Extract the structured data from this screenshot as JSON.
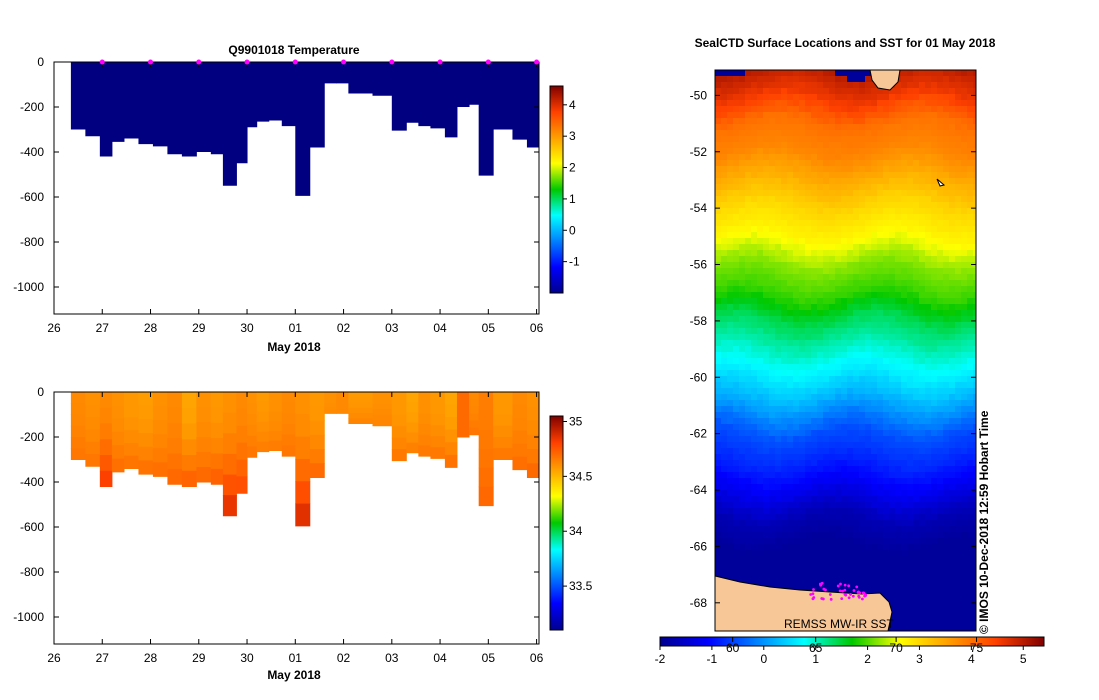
{
  "chart_data": [
    {
      "type": "heatmap",
      "id": "temperature",
      "title": "Q9901018  Temperature",
      "xlabel": "May 2018",
      "ylabel": "",
      "x_ticks": [
        "26",
        "27",
        "28",
        "29",
        "30",
        "01",
        "02",
        "03",
        "04",
        "05",
        "06"
      ],
      "x_tick_days": [
        0,
        1,
        2,
        3,
        4,
        5,
        6,
        7,
        8,
        9,
        10
      ],
      "y_ticks": [
        0,
        -200,
        -400,
        -600,
        -800,
        -1000
      ],
      "ylim": [
        -1120,
        0
      ],
      "xlim_days": [
        0,
        10.05
      ],
      "colorbar": {
        "ticks": [
          -1,
          0,
          1,
          2,
          3,
          4
        ],
        "range": [
          -2,
          4.6
        ]
      },
      "profile_start_days": [
        0.35,
        0.65,
        0.95,
        1.2,
        1.45,
        1.75,
        2.05,
        2.35,
        2.65,
        2.95,
        3.25,
        3.5,
        3.78,
        4.0,
        4.2,
        4.45,
        4.72,
        5.0,
        5.3,
        5.6,
        5.85,
        6.1,
        6.6,
        7.0,
        7.3,
        7.55,
        7.8,
        8.1,
        8.35,
        8.6,
        8.8,
        9.1,
        9.5,
        9.8,
        10.05
      ],
      "profile_max_depth": [
        -300,
        -330,
        -420,
        -355,
        -340,
        -365,
        -375,
        -410,
        -420,
        -400,
        -410,
        -550,
        -450,
        -290,
        -265,
        -260,
        -285,
        -595,
        -380,
        -95,
        -95,
        -140,
        -150,
        -305,
        -270,
        -285,
        -295,
        -335,
        -200,
        -190,
        -505,
        -300,
        -345,
        -380
      ],
      "values_range_observed": [
        -1.9,
        -1.9
      ]
    },
    {
      "type": "heatmap",
      "id": "salinity",
      "title": "",
      "xlabel": "May 2018",
      "ylabel": "",
      "x_ticks": [
        "26",
        "27",
        "28",
        "29",
        "30",
        "01",
        "02",
        "03",
        "04",
        "05",
        "06"
      ],
      "x_tick_days": [
        0,
        1,
        2,
        3,
        4,
        5,
        6,
        7,
        8,
        9,
        10
      ],
      "y_ticks": [
        0,
        -200,
        -400,
        -600,
        -800,
        -1000
      ],
      "ylim": [
        -1120,
        0
      ],
      "xlim_days": [
        0,
        10.05
      ],
      "colorbar": {
        "ticks": [
          33.5,
          34,
          34.5,
          35
        ],
        "range": [
          33.1,
          35.05
        ]
      },
      "profile_start_days": [
        0.35,
        0.65,
        0.95,
        1.2,
        1.45,
        1.75,
        2.05,
        2.35,
        2.65,
        2.95,
        3.25,
        3.5,
        3.78,
        4.0,
        4.2,
        4.45,
        4.72,
        5.0,
        5.3,
        5.6,
        5.85,
        6.1,
        6.6,
        7.0,
        7.3,
        7.55,
        7.8,
        8.1,
        8.35,
        8.6,
        8.8,
        9.1,
        9.5,
        9.8,
        10.05
      ],
      "profile_max_depth": [
        -300,
        -330,
        -420,
        -355,
        -340,
        -365,
        -375,
        -410,
        -420,
        -400,
        -410,
        -550,
        -450,
        -290,
        -265,
        -260,
        -285,
        -595,
        -380,
        -95,
        -95,
        -140,
        -150,
        -305,
        -270,
        -285,
        -295,
        -335,
        -200,
        -190,
        -505,
        -300,
        -345,
        -380
      ],
      "surface_salinity": [
        34.62,
        34.6,
        34.62,
        34.6,
        34.58,
        34.57,
        34.6,
        34.62,
        34.55,
        34.6,
        34.58,
        34.6,
        34.62,
        34.6,
        34.58,
        34.6,
        34.62,
        34.6,
        34.58,
        34.6,
        34.62,
        34.58,
        34.6,
        34.58,
        34.55,
        34.6,
        34.58,
        34.55,
        34.7,
        34.62,
        34.65,
        34.58,
        34.62,
        34.6
      ],
      "deep_salinity": [
        34.68,
        34.68,
        34.85,
        34.7,
        34.69,
        34.7,
        34.7,
        34.72,
        34.75,
        34.72,
        34.75,
        34.9,
        34.8,
        34.68,
        34.66,
        34.66,
        34.68,
        34.92,
        34.72,
        34.62,
        34.62,
        34.64,
        34.64,
        34.68,
        34.66,
        34.67,
        34.68,
        34.7,
        34.7,
        34.68,
        34.72,
        34.68,
        34.7,
        34.72
      ]
    },
    {
      "type": "heatmap",
      "id": "sst-map",
      "title": "SealCTD Surface Locations and SST for 01 May 2018",
      "xlabel": "",
      "ylabel": "",
      "y_ticks": [
        -50,
        -52,
        -54,
        -56,
        -58,
        -60,
        -62,
        -64,
        -66,
        -68
      ],
      "lat_range": [
        -69.0,
        -49.1
      ],
      "sst_by_lat": [
        [
          -49.1,
          5.0
        ],
        [
          -50.0,
          4.6
        ],
        [
          -51.0,
          4.0
        ],
        [
          -52.0,
          3.8
        ],
        [
          -53.0,
          3.4
        ],
        [
          -54.0,
          3.0
        ],
        [
          -55.0,
          2.7
        ],
        [
          -56.0,
          2.2
        ],
        [
          -57.0,
          1.9
        ],
        [
          -58.0,
          1.4
        ],
        [
          -59.0,
          1.0
        ],
        [
          -60.0,
          0.6
        ],
        [
          -61.0,
          0.1
        ],
        [
          -62.0,
          -0.5
        ],
        [
          -63.0,
          -0.8
        ],
        [
          -64.0,
          -1.2
        ],
        [
          -65.0,
          -1.7
        ],
        [
          -66.0,
          -1.9
        ],
        [
          -69.0,
          -1.9
        ]
      ],
      "colorbar": {
        "ticks": [
          -2,
          -1,
          0,
          1,
          2,
          3,
          4,
          5
        ],
        "range": [
          -2,
          5.4
        ]
      },
      "secondary_ticks": [
        "60",
        "65",
        "70",
        "75"
      ],
      "secondary_tick_positions": [
        -0.6,
        1.0,
        2.55,
        4.1
      ],
      "annotations": [
        "REMSS MW-IR SST  ",
        "© IMOS 10-Dec-2018 12:59 Hobart Time"
      ],
      "seal_locations_desc": "clustered near -67.2 to -67.9 latitude along coast"
    }
  ],
  "colors": {
    "profile_fill": "#000080",
    "land": "#f8c797",
    "marker": "#ff00ff"
  }
}
